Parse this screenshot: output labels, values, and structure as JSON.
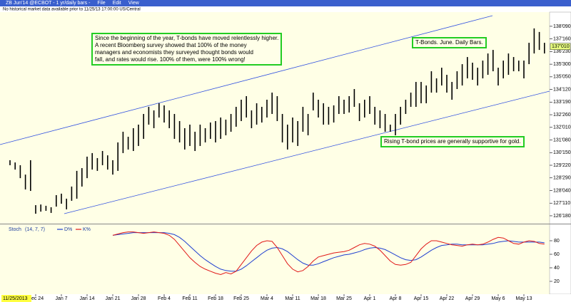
{
  "window": {
    "title": "ZB Jun'14 @ECBOT - 1 yr/daily bars -",
    "menu": [
      "File",
      "Edit",
      "View"
    ]
  },
  "chart_data": [
    {
      "type": "ohlc",
      "note": "No historical market data available prior to 11/25/13 17:00:00 US/Central",
      "cursor_date": "11/25/2013",
      "annotations": [
        [
          "Since the beginning of the year, T-bonds have moved relentlessly higher.",
          "A recent Bloomberg survey showed that 100% of the money",
          "managers and economists they surveyed thought bonds would",
          "fall, and rates would rise.  100% of them, were 100% wrong!"
        ],
        [
          "T-Bonds. June. Daily Bars."
        ],
        [
          "Rising T-bond prices are generally supportive for gold."
        ]
      ],
      "color": "#000000",
      "categories": [
        null,
        null,
        null,
        null,
        null,
        "Dec 24",
        null,
        null,
        null,
        null,
        "Jan 7",
        null,
        null,
        null,
        null,
        "Jan 14",
        null,
        null,
        null,
        null,
        "Jan 21",
        null,
        null,
        null,
        null,
        "Jan 28",
        null,
        null,
        null,
        null,
        "Feb 4",
        null,
        null,
        null,
        null,
        "Feb 11",
        null,
        null,
        null,
        null,
        "Feb 18",
        null,
        null,
        null,
        null,
        "Feb 25",
        null,
        null,
        null,
        null,
        "Mar 4",
        null,
        null,
        null,
        null,
        "Mar 11",
        null,
        null,
        null,
        null,
        "Mar 18",
        null,
        null,
        null,
        null,
        "Mar 25",
        null,
        null,
        null,
        null,
        "Apr 1",
        null,
        null,
        null,
        null,
        "Apr 8",
        null,
        null,
        null,
        null,
        "Apr 15",
        null,
        null,
        null,
        null,
        "Apr 22",
        null,
        null,
        null,
        null,
        "Apr 29",
        null,
        null,
        null,
        null,
        "May 6",
        null,
        null,
        null,
        null,
        "May 13",
        null,
        null,
        null,
        null
      ],
      "high": [
        130.0,
        129.86,
        129.69,
        129.11,
        130.0,
        127.22,
        127.26,
        127.18,
        127.09,
        127.84,
        127.93,
        127.62,
        128.37,
        129.34,
        129.51,
        130.22,
        130.44,
        130.13,
        130.57,
        130.3,
        130.0,
        131.1,
        131.76,
        131.45,
        131.98,
        132.2,
        132.86,
        133.3,
        133.08,
        133.52,
        133.39,
        133.08,
        132.86,
        132.42,
        131.98,
        132.2,
        131.76,
        132.2,
        131.98,
        132.33,
        132.42,
        132.64,
        132.51,
        132.86,
        133.3,
        133.74,
        133.96,
        133.08,
        133.52,
        133.3,
        133.74,
        134.18,
        133.96,
        132.86,
        132.2,
        132.64,
        132.42,
        133.3,
        132.86,
        134.18,
        133.74,
        133.52,
        133.3,
        133.39,
        133.96,
        133.74,
        133.96,
        134.4,
        133.52,
        133.74,
        133.96,
        133.3,
        133.08,
        132.86,
        132.2,
        132.86,
        133.3,
        133.74,
        134.18,
        134.84,
        134.84,
        134.62,
        135.5,
        135.06,
        135.72,
        135.28,
        134.84,
        135.5,
        135.94,
        136.38,
        136.03,
        135.72,
        136.16,
        136.6,
        136.82,
        135.72,
        136.16,
        136.6,
        136.38,
        136.16,
        136.16,
        137.26,
        138.15,
        137.93,
        137.26
      ],
      "low": [
        129.69,
        129.42,
        128.89,
        128.19,
        128.1,
        126.69,
        126.82,
        126.87,
        126.74,
        127.13,
        127.31,
        126.96,
        127.49,
        127.62,
        128.37,
        128.89,
        129.42,
        129.34,
        129.69,
        129.42,
        129.11,
        129.34,
        130.44,
        130.66,
        130.57,
        130.88,
        131.32,
        132.2,
        131.98,
        132.64,
        132.33,
        131.98,
        131.32,
        131.1,
        130.66,
        130.88,
        130.57,
        130.88,
        131.1,
        131.32,
        131.1,
        131.32,
        131.54,
        131.76,
        132.07,
        132.42,
        132.64,
        131.98,
        132.2,
        132.33,
        132.64,
        132.86,
        132.42,
        131.1,
        130.66,
        131.1,
        130.88,
        131.76,
        131.54,
        133.08,
        132.64,
        132.2,
        132.2,
        132.33,
        132.86,
        132.86,
        132.95,
        133.3,
        132.42,
        132.64,
        132.86,
        132.2,
        131.98,
        131.76,
        131.76,
        131.54,
        132.2,
        132.86,
        133.3,
        133.3,
        133.52,
        133.52,
        134.18,
        134.18,
        134.62,
        134.18,
        133.74,
        134.4,
        134.62,
        135.06,
        134.97,
        134.62,
        135.06,
        135.28,
        135.5,
        134.62,
        135.06,
        135.28,
        135.5,
        135.5,
        135.06,
        135.94,
        136.6,
        136.82,
        136.6
      ],
      "ylim": [
        126.12,
        139.07
      ],
      "yticks": [
        {
          "value": 126.5625,
          "label": "126'180"
        },
        {
          "value": 127.34375,
          "label": "127'110"
        },
        {
          "value": 128.125,
          "label": "128'040"
        },
        {
          "value": 128.90625,
          "label": "128'290"
        },
        {
          "value": 129.6875,
          "label": "129'220"
        },
        {
          "value": 130.46875,
          "label": "130'150"
        },
        {
          "value": 131.25,
          "label": "131'080"
        },
        {
          "value": 132.03125,
          "label": "132'010"
        },
        {
          "value": 132.8125,
          "label": "132'260"
        },
        {
          "value": 133.59375,
          "label": "133'190"
        },
        {
          "value": 134.375,
          "label": "134'120"
        },
        {
          "value": 135.15625,
          "label": "135'050"
        },
        {
          "value": 135.9375,
          "label": "135'300"
        },
        {
          "value": 136.71875,
          "label": "136'230"
        },
        {
          "value": 137.5,
          "label": "137'160"
        },
        {
          "value": 138.28125,
          "label": "138'090"
        }
      ],
      "last_price": {
        "value": 137.03125,
        "label": "137'010"
      }
    },
    {
      "type": "line",
      "title": "Stoch",
      "params": "(14, 7, 7)",
      "series": [
        {
          "name": "D%",
          "color": "#1f3fd0",
          "values": [
            null,
            null,
            null,
            null,
            null,
            null,
            null,
            null,
            null,
            null,
            null,
            null,
            null,
            null,
            null,
            null,
            null,
            null,
            null,
            null,
            88,
            89,
            90,
            91,
            92,
            92,
            92,
            92,
            92,
            92,
            92,
            91,
            89,
            85,
            79,
            72,
            65,
            58,
            52,
            47,
            42,
            38,
            36,
            35,
            35,
            38,
            43,
            49,
            55,
            61,
            66,
            69,
            70,
            68,
            64,
            58,
            52,
            47,
            44,
            44,
            46,
            49,
            52,
            55,
            57,
            59,
            60,
            62,
            64,
            67,
            69,
            70,
            69,
            67,
            63,
            59,
            55,
            52,
            51,
            52,
            56,
            61,
            66,
            70,
            73,
            74,
            75,
            75,
            74,
            74,
            74,
            74,
            74,
            75,
            76,
            78,
            79,
            80,
            79,
            78,
            78,
            78,
            78,
            78,
            77
          ]
        },
        {
          "name": "K%",
          "color": "#e01818",
          "values": [
            null,
            null,
            null,
            null,
            null,
            null,
            null,
            null,
            null,
            null,
            null,
            null,
            null,
            null,
            null,
            null,
            null,
            null,
            null,
            null,
            88,
            90,
            92,
            93,
            93,
            92,
            91,
            92,
            93,
            92,
            91,
            88,
            82,
            73,
            64,
            55,
            48,
            42,
            38,
            35,
            32,
            30,
            33,
            31,
            35,
            45,
            55,
            65,
            73,
            78,
            80,
            79,
            70,
            58,
            46,
            38,
            34,
            36,
            42,
            50,
            56,
            58,
            60,
            62,
            63,
            64,
            66,
            70,
            74,
            76,
            75,
            72,
            66,
            58,
            50,
            45,
            44,
            45,
            48,
            58,
            68,
            75,
            80,
            80,
            78,
            76,
            74,
            73,
            72,
            74,
            75,
            74,
            75,
            78,
            82,
            85,
            84,
            80,
            76,
            75,
            78,
            80,
            79,
            76,
            75
          ]
        }
      ],
      "ylim": [
        0,
        100
      ],
      "yticks": [
        20,
        40,
        60,
        80
      ]
    }
  ]
}
